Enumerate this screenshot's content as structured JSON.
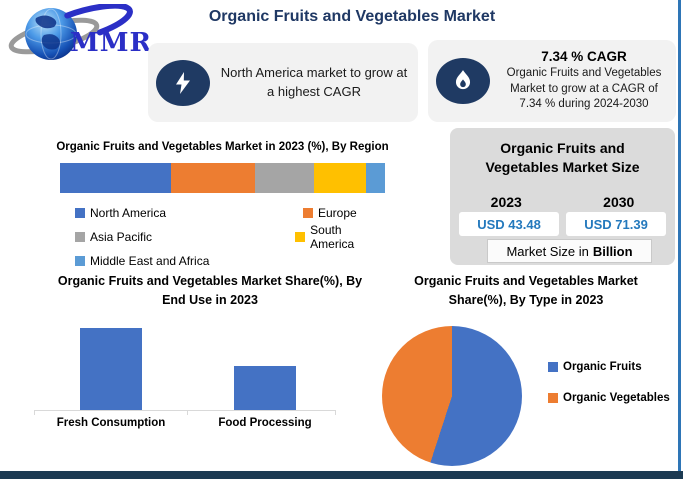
{
  "page": {
    "title": "Organic Fruits and Vegetables Market",
    "title_color": "#1F3864",
    "footer_bar_color": "#1C3A52",
    "right_edge_color": "#2E75B6",
    "callout_bg": "#F2F2F2",
    "icon_ellipse_color": "#1F3A63"
  },
  "logo": {
    "text": "MMR",
    "icon": "globe-icon",
    "text_color": "#2B2FC6"
  },
  "callout_left": {
    "icon": "lightning-bolt-icon",
    "text": "North America market to grow at a highest CAGR"
  },
  "callout_right": {
    "icon": "flame-icon",
    "title": "7.34 % CAGR",
    "text": "Organic Fruits and Vegetables Market to grow at a CAGR of 7.34 % during 2024-2030"
  },
  "market_size_panel": {
    "title_line1": "Organic Fruits and",
    "title_line2": "Vegetables Market Size",
    "year_left": "2023",
    "year_right": "2030",
    "value_left": "USD 43.48",
    "value_right": "USD 71.39",
    "value_color": "#2479BD",
    "footnote_prefix": "Market Size in",
    "footnote_bold": "Billion",
    "panel_bg": "#DBDBDB"
  },
  "chart_data": [
    {
      "type": "bar",
      "subtype": "stacked-horizontal",
      "title": "Organic Fruits and Vegetables Market in 2023 (%), By Region",
      "categories": [
        "North America",
        "Europe",
        "Asia Pacific",
        "South America",
        "Middle East and Africa"
      ],
      "values": [
        34,
        26,
        18,
        16,
        6
      ],
      "colors": [
        "#4472C4",
        "#ED7D31",
        "#A5A5A5",
        "#FFC000",
        "#5B9BD5"
      ],
      "legend_position": "below",
      "grid": false
    },
    {
      "type": "bar",
      "title": "Organic Fruits and Vegetables  Market Share(%), By End Use in 2023",
      "categories": [
        "Fresh Consumption",
        "Food Processing"
      ],
      "values": [
        65,
        35
      ],
      "bar_color": "#4472C4",
      "ylim": [
        0,
        70
      ],
      "grid": false,
      "axis_color": "#D9D9D9"
    },
    {
      "type": "pie",
      "title": "Organic Fruits and Vegetables  Market Share(%), By Type in 2023",
      "categories": [
        "Organic Fruits",
        "Organic Vegetables"
      ],
      "values": [
        55,
        45
      ],
      "colors": [
        "#4472C4",
        "#ED7D31"
      ],
      "start_angle_deg": 0,
      "legend_position": "right"
    }
  ]
}
